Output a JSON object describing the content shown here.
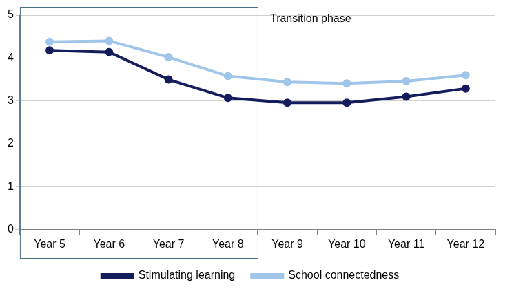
{
  "chart_data": {
    "type": "line",
    "categories": [
      "Year 5",
      "Year 6",
      "Year 7",
      "Year 8",
      "Year 9",
      "Year 10",
      "Year 11",
      "Year 12"
    ],
    "series": [
      {
        "name": "Stimulating learning",
        "color": "#141c5c",
        "marker": "circle",
        "line_style": "solid",
        "values": [
          4.18,
          4.14,
          3.5,
          3.07,
          2.96,
          2.96,
          3.1,
          3.29
        ]
      },
      {
        "name": "School connectedness",
        "color": "#9fc5e8",
        "marker": "circle",
        "line_style": "solid",
        "values": [
          4.38,
          4.4,
          4.02,
          3.58,
          3.44,
          3.41,
          3.46,
          3.6
        ]
      }
    ],
    "ylim": [
      0,
      5
    ],
    "yticks": [
      0,
      1,
      2,
      3,
      4,
      5
    ],
    "grid": true,
    "legend": "bottom",
    "annotations": [
      {
        "text": "Transition phase",
        "from": "Year 5",
        "to": "Year 8"
      }
    ]
  }
}
